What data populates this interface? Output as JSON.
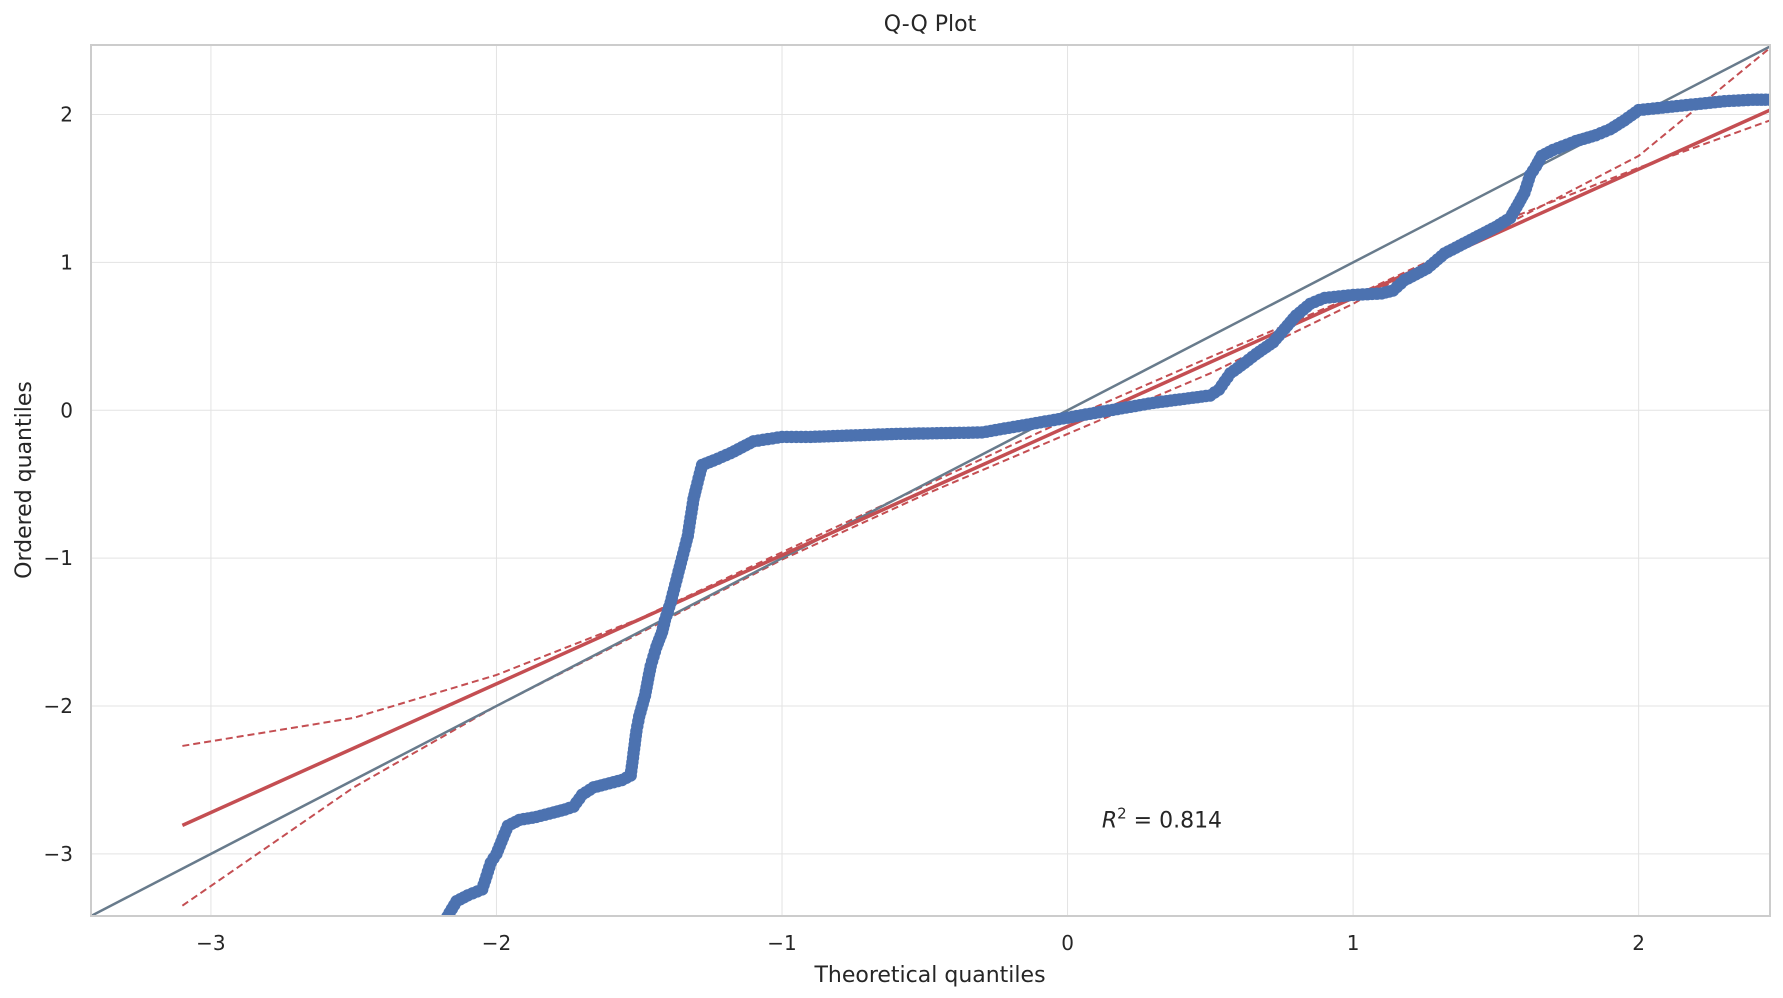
{
  "chart_data": {
    "type": "scatter",
    "title": "Q-Q Plot",
    "xlabel": "Theoretical quantiles",
    "ylabel": "Ordered quantiles",
    "xlim": [
      -3.42,
      2.46
    ],
    "ylim": [
      -3.42,
      2.47
    ],
    "xticks": [
      -3,
      -2,
      -1,
      0,
      1,
      2
    ],
    "yticks": [
      -3,
      -2,
      -1,
      0,
      1,
      2
    ],
    "xtick_labels": [
      "−3",
      "−2",
      "−1",
      "0",
      "1",
      "2"
    ],
    "ytick_labels": [
      "−3",
      "−2",
      "−1",
      "0",
      "1",
      "2"
    ],
    "grid": true,
    "annotation": {
      "text_lead": "R",
      "text_sup": "2",
      "text_tail": " = 0.814",
      "x": 0.12,
      "y": -2.82
    },
    "colors": {
      "points": "#4c72b0",
      "fit": "#c44e52",
      "reference": "#687b8c",
      "grid": "#e3e3e3"
    },
    "reference_line": {
      "slope": 1,
      "intercept": 0,
      "label": ""
    },
    "fit_line": {
      "slope": 0.87,
      "intercept": -0.11,
      "x_range": [
        -3.1,
        2.46
      ]
    },
    "confidence_band": {
      "upper": [
        [
          -3.1,
          -2.27
        ],
        [
          -2.5,
          -2.08
        ],
        [
          -2.0,
          -1.79
        ],
        [
          -1.5,
          -1.41
        ],
        [
          -1.0,
          -0.96
        ],
        [
          -0.5,
          -0.51
        ],
        [
          0.0,
          -0.06
        ],
        [
          0.5,
          0.36
        ],
        [
          1.0,
          0.77
        ],
        [
          1.5,
          1.22
        ],
        [
          2.0,
          1.72
        ],
        [
          2.46,
          2.45
        ]
      ],
      "lower": [
        [
          -3.1,
          -3.35
        ],
        [
          -2.5,
          -2.55
        ],
        [
          -2.0,
          -2.0
        ],
        [
          -1.5,
          -1.51
        ],
        [
          -1.0,
          -1.01
        ],
        [
          -0.5,
          -0.57
        ],
        [
          0.0,
          -0.16
        ],
        [
          0.5,
          0.25
        ],
        [
          1.0,
          0.72
        ],
        [
          1.5,
          1.26
        ],
        [
          2.0,
          1.64
        ],
        [
          2.46,
          1.96
        ]
      ]
    },
    "points_path": [
      [
        -2.18,
        -3.45
      ],
      [
        -2.14,
        -3.32
      ],
      [
        -2.1,
        -3.28
      ],
      [
        -2.05,
        -3.24
      ],
      [
        -2.02,
        -3.06
      ],
      [
        -2.0,
        -3.0
      ],
      [
        -1.96,
        -2.81
      ],
      [
        -1.92,
        -2.77
      ],
      [
        -1.86,
        -2.75
      ],
      [
        -1.8,
        -2.72
      ],
      [
        -1.76,
        -2.7
      ],
      [
        -1.73,
        -2.68
      ],
      [
        -1.7,
        -2.6
      ],
      [
        -1.66,
        -2.55
      ],
      [
        -1.62,
        -2.53
      ],
      [
        -1.56,
        -2.5
      ],
      [
        -1.53,
        -2.47
      ],
      [
        -1.51,
        -2.17
      ],
      [
        -1.5,
        -2.07
      ],
      [
        -1.48,
        -1.93
      ],
      [
        -1.46,
        -1.73
      ],
      [
        -1.44,
        -1.6
      ],
      [
        -1.42,
        -1.5
      ],
      [
        -1.41,
        -1.42
      ],
      [
        -1.39,
        -1.3
      ],
      [
        -1.37,
        -1.15
      ],
      [
        -1.35,
        -1.0
      ],
      [
        -1.33,
        -0.85
      ],
      [
        -1.31,
        -0.6
      ],
      [
        -1.3,
        -0.52
      ],
      [
        -1.28,
        -0.37
      ],
      [
        -1.24,
        -0.34
      ],
      [
        -1.18,
        -0.29
      ],
      [
        -1.1,
        -0.21
      ],
      [
        -1.0,
        -0.18
      ],
      [
        -0.9,
        -0.18
      ],
      [
        -0.6,
        -0.16
      ],
      [
        -0.3,
        -0.15
      ],
      [
        0.0,
        -0.05
      ],
      [
        0.3,
        0.05
      ],
      [
        0.5,
        0.1
      ],
      [
        0.53,
        0.14
      ],
      [
        0.57,
        0.25
      ],
      [
        0.62,
        0.32
      ],
      [
        0.66,
        0.38
      ],
      [
        0.72,
        0.46
      ],
      [
        0.76,
        0.55
      ],
      [
        0.8,
        0.64
      ],
      [
        0.85,
        0.72
      ],
      [
        0.9,
        0.76
      ],
      [
        1.0,
        0.78
      ],
      [
        1.1,
        0.79
      ],
      [
        1.14,
        0.81
      ],
      [
        1.18,
        0.88
      ],
      [
        1.26,
        0.96
      ],
      [
        1.32,
        1.06
      ],
      [
        1.4,
        1.14
      ],
      [
        1.45,
        1.19
      ],
      [
        1.5,
        1.24
      ],
      [
        1.55,
        1.3
      ],
      [
        1.58,
        1.4
      ],
      [
        1.6,
        1.47
      ],
      [
        1.62,
        1.59
      ],
      [
        1.64,
        1.65
      ],
      [
        1.66,
        1.72
      ],
      [
        1.7,
        1.76
      ],
      [
        1.78,
        1.82
      ],
      [
        1.85,
        1.86
      ],
      [
        1.9,
        1.9
      ],
      [
        1.95,
        1.96
      ],
      [
        2.0,
        2.03
      ],
      [
        2.1,
        2.05
      ],
      [
        2.2,
        2.07
      ],
      [
        2.3,
        2.09
      ],
      [
        2.4,
        2.1
      ],
      [
        2.46,
        2.1
      ]
    ]
  }
}
